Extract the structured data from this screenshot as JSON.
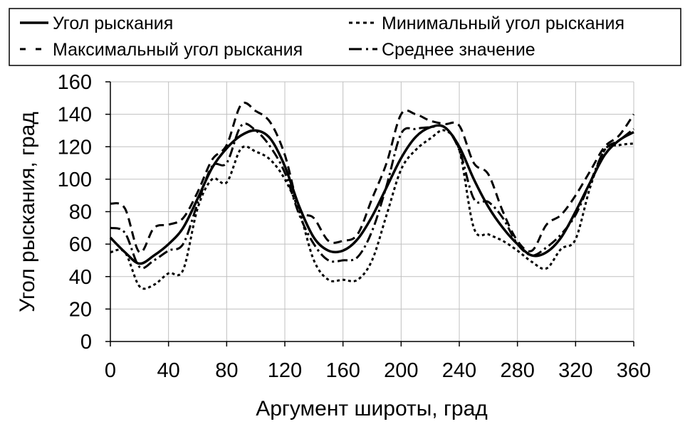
{
  "chart_data": {
    "type": "line",
    "title": "",
    "xlabel": "Аргумент широты, град",
    "ylabel": "Угол рыскания, град",
    "xlim": [
      0,
      360
    ],
    "ylim": [
      0,
      160
    ],
    "xticks": [
      0,
      40,
      80,
      120,
      160,
      200,
      240,
      280,
      320,
      360
    ],
    "yticks": [
      0,
      20,
      40,
      60,
      80,
      100,
      120,
      140,
      160
    ],
    "grid": true,
    "legend_position": "top",
    "x": [
      0,
      10,
      20,
      30,
      40,
      50,
      60,
      70,
      80,
      90,
      100,
      110,
      120,
      130,
      140,
      150,
      160,
      170,
      180,
      190,
      200,
      210,
      220,
      230,
      240,
      250,
      260,
      270,
      280,
      290,
      300,
      310,
      320,
      330,
      340,
      350,
      360
    ],
    "series": [
      {
        "name": "Угол рыскания",
        "style": "solid",
        "values": [
          64,
          55,
          48,
          53,
          60,
          70,
          88,
          107,
          119,
          127,
          130,
          125,
          108,
          83,
          64,
          56,
          56,
          63,
          77,
          95,
          113,
          126,
          132,
          132,
          120,
          100,
          83,
          70,
          60,
          53,
          55,
          64,
          80,
          98,
          115,
          124,
          129
        ]
      },
      {
        "name": "Минимальный угол рыскания",
        "style": "dotted",
        "values": [
          55,
          55,
          34,
          35,
          42,
          44,
          82,
          100,
          98,
          119,
          117,
          112,
          100,
          80,
          50,
          38,
          38,
          38,
          50,
          78,
          106,
          118,
          125,
          130,
          118,
          70,
          66,
          62,
          56,
          49,
          45,
          57,
          63,
          95,
          118,
          121,
          122
        ]
      },
      {
        "name": "Максимальный угол рыскания",
        "style": "dashed",
        "values": [
          85,
          82,
          55,
          70,
          72,
          76,
          92,
          112,
          121,
          146,
          142,
          135,
          115,
          82,
          76,
          62,
          62,
          66,
          88,
          110,
          140,
          140,
          136,
          134,
          133,
          110,
          103,
          80,
          62,
          56,
          72,
          78,
          90,
          105,
          120,
          127,
          140
        ]
      },
      {
        "name": "Среднее значение",
        "style": "dash-dot",
        "values": [
          70,
          67,
          46,
          50,
          56,
          60,
          85,
          108,
          110,
          133,
          130,
          120,
          104,
          78,
          60,
          50,
          50,
          52,
          68,
          96,
          128,
          131,
          132,
          132,
          118,
          88,
          86,
          76,
          60,
          53,
          58,
          66,
          78,
          98,
          118,
          124,
          131
        ]
      }
    ]
  },
  "colors": {
    "background": "#ffffff",
    "line": "#000000",
    "grid": "#c0c0c0",
    "legend_border": "#000000"
  }
}
